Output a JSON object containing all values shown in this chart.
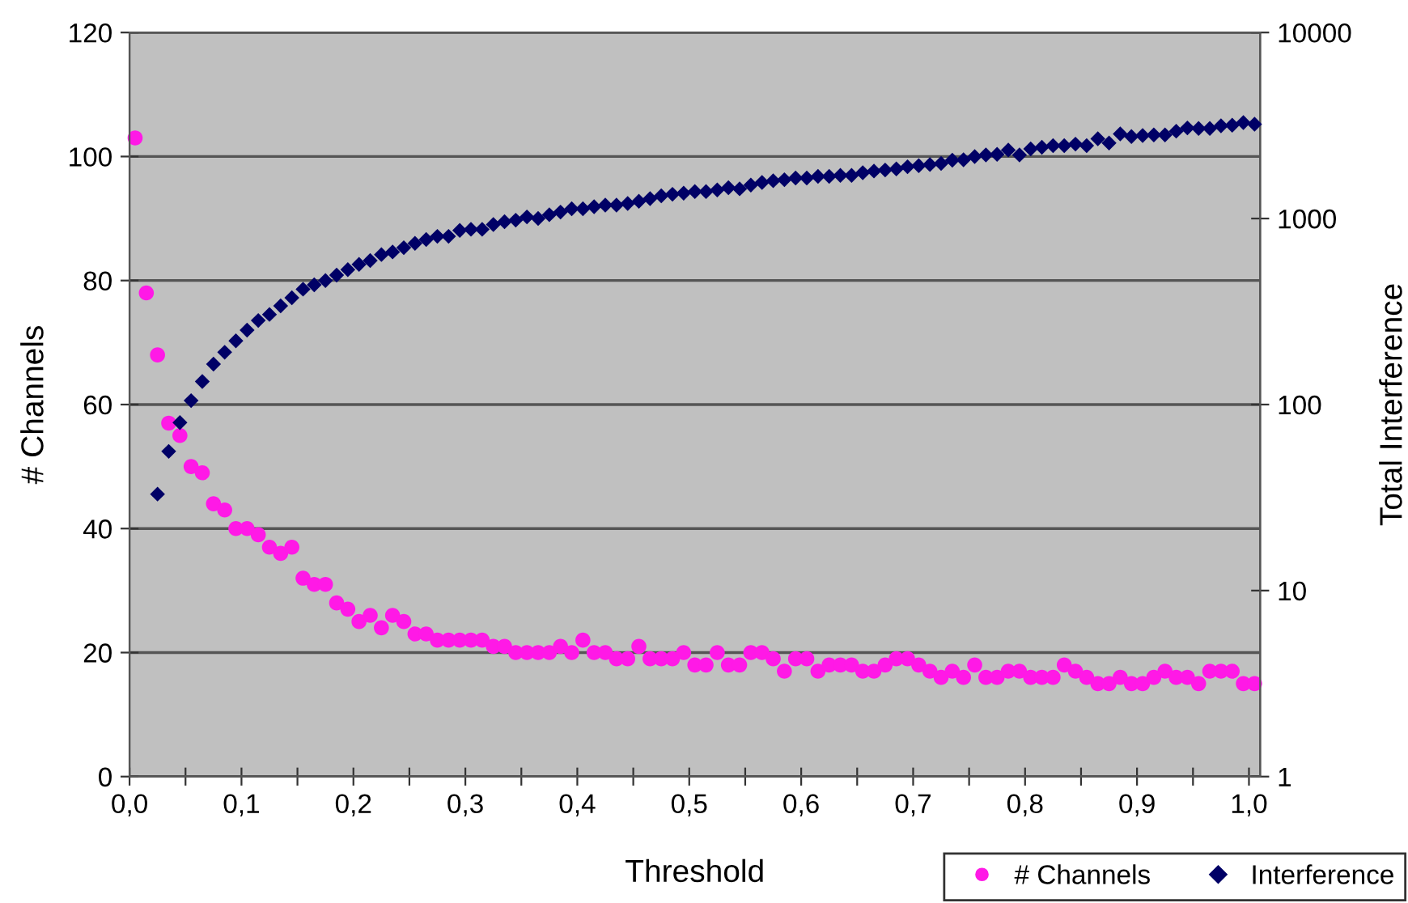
{
  "chart_data": {
    "type": "scatter",
    "xlabel": "Threshold",
    "ylabel": "# Channels",
    "y2label": "Total Interference",
    "x": [
      0.005,
      0.015,
      0.025,
      0.035,
      0.045,
      0.055,
      0.065,
      0.075,
      0.085,
      0.095,
      0.105,
      0.115,
      0.125,
      0.135,
      0.145,
      0.155,
      0.165,
      0.175,
      0.185,
      0.195,
      0.205,
      0.215,
      0.225,
      0.235,
      0.245,
      0.255,
      0.265,
      0.275,
      0.285,
      0.295,
      0.305,
      0.315,
      0.325,
      0.335,
      0.345,
      0.355,
      0.365,
      0.375,
      0.385,
      0.395,
      0.405,
      0.415,
      0.425,
      0.435,
      0.445,
      0.455,
      0.465,
      0.475,
      0.485,
      0.495,
      0.505,
      0.515,
      0.525,
      0.535,
      0.545,
      0.555,
      0.565,
      0.575,
      0.585,
      0.595,
      0.605,
      0.615,
      0.625,
      0.635,
      0.645,
      0.655,
      0.665,
      0.675,
      0.685,
      0.695,
      0.705,
      0.715,
      0.725,
      0.735,
      0.745,
      0.755,
      0.765,
      0.775,
      0.785,
      0.795,
      0.805,
      0.815,
      0.825,
      0.835,
      0.845,
      0.855,
      0.865,
      0.875,
      0.885,
      0.895,
      0.905,
      0.915,
      0.925,
      0.935,
      0.945,
      0.955,
      0.965,
      0.975,
      0.985,
      0.995,
      1.005
    ],
    "series": [
      {
        "name": "# Channels",
        "color": "#ff19e6",
        "marker": "circle",
        "values": [
          103,
          78,
          68,
          57,
          55,
          50,
          49,
          44,
          43,
          40,
          40,
          39,
          37,
          36,
          37,
          32,
          31,
          31,
          28,
          27,
          25,
          26,
          24,
          26,
          25,
          23,
          23,
          22,
          22,
          22,
          22,
          22,
          21,
          21,
          20,
          20,
          20,
          20,
          21,
          20,
          22,
          20,
          20,
          19,
          19,
          21,
          19,
          19,
          19,
          20,
          18,
          18,
          20,
          18,
          18,
          20,
          20,
          19,
          17,
          19,
          19,
          17,
          18,
          18,
          18,
          17,
          17,
          18,
          19,
          19,
          18,
          17,
          16,
          17,
          16,
          18,
          16,
          16,
          17,
          17,
          16,
          16,
          16,
          18,
          17,
          16,
          15,
          15,
          16,
          15,
          15,
          16,
          17,
          16,
          16,
          15,
          17,
          17,
          17,
          15,
          15
        ]
      },
      {
        "name": "Interference",
        "color": "#000066",
        "marker": "diamond",
        "axis": "y2",
        "values": [
          null,
          null,
          33,
          56,
          80,
          105,
          133,
          165,
          191,
          220,
          251,
          283,
          305,
          339,
          375,
          417,
          440,
          464,
          496,
          531,
          567,
          594,
          640,
          661,
          697,
          736,
          771,
          802,
          802,
          863,
          875,
          875,
          929,
          961,
          980,
          1020,
          1000,
          1048,
          1083,
          1128,
          1128,
          1158,
          1181,
          1181,
          1205,
          1238,
          1280,
          1324,
          1350,
          1368,
          1396,
          1396,
          1425,
          1463,
          1444,
          1512,
          1564,
          1596,
          1617,
          1650,
          1650,
          1684,
          1684,
          1706,
          1706,
          1763,
          1800,
          1823,
          1848,
          1898,
          1924,
          1950,
          1977,
          2057,
          2070,
          2154,
          2197,
          2213,
          2335,
          2197,
          2366,
          2415,
          2463,
          2463,
          2512,
          2463,
          2685,
          2546,
          2851,
          2759,
          2795,
          2813,
          2813,
          2948,
          3069,
          3049,
          3049,
          3153,
          3174,
          3281,
          3213
        ]
      }
    ],
    "xlim": [
      0,
      1.01
    ],
    "xticks": [
      {
        "value": 0,
        "label": "0,0"
      },
      {
        "value": 0.05,
        "label": null
      },
      {
        "value": 0.1,
        "label": "0,1"
      },
      {
        "value": 0.15,
        "label": null
      },
      {
        "value": 0.2,
        "label": "0,2"
      },
      {
        "value": 0.25,
        "label": null
      },
      {
        "value": 0.3,
        "label": "0,3"
      },
      {
        "value": 0.35,
        "label": null
      },
      {
        "value": 0.4,
        "label": "0,4"
      },
      {
        "value": 0.45,
        "label": null
      },
      {
        "value": 0.5,
        "label": "0,5"
      },
      {
        "value": 0.55,
        "label": null
      },
      {
        "value": 0.6,
        "label": "0,6"
      },
      {
        "value": 0.65,
        "label": null
      },
      {
        "value": 0.7,
        "label": "0,7"
      },
      {
        "value": 0.75,
        "label": null
      },
      {
        "value": 0.8,
        "label": "0,8"
      },
      {
        "value": 0.85,
        "label": null
      },
      {
        "value": 0.9,
        "label": "0,9"
      },
      {
        "value": 0.95,
        "label": null
      },
      {
        "value": 1.0,
        "label": "1,0"
      }
    ],
    "ylim": [
      0,
      120
    ],
    "yticks": [
      0,
      20,
      40,
      60,
      80,
      100,
      120
    ],
    "y2lim": [
      1,
      10000
    ],
    "y2ticks": [
      1,
      10,
      100,
      1000,
      10000
    ],
    "log": "y2",
    "grid": "y",
    "legend": "bottom right"
  }
}
